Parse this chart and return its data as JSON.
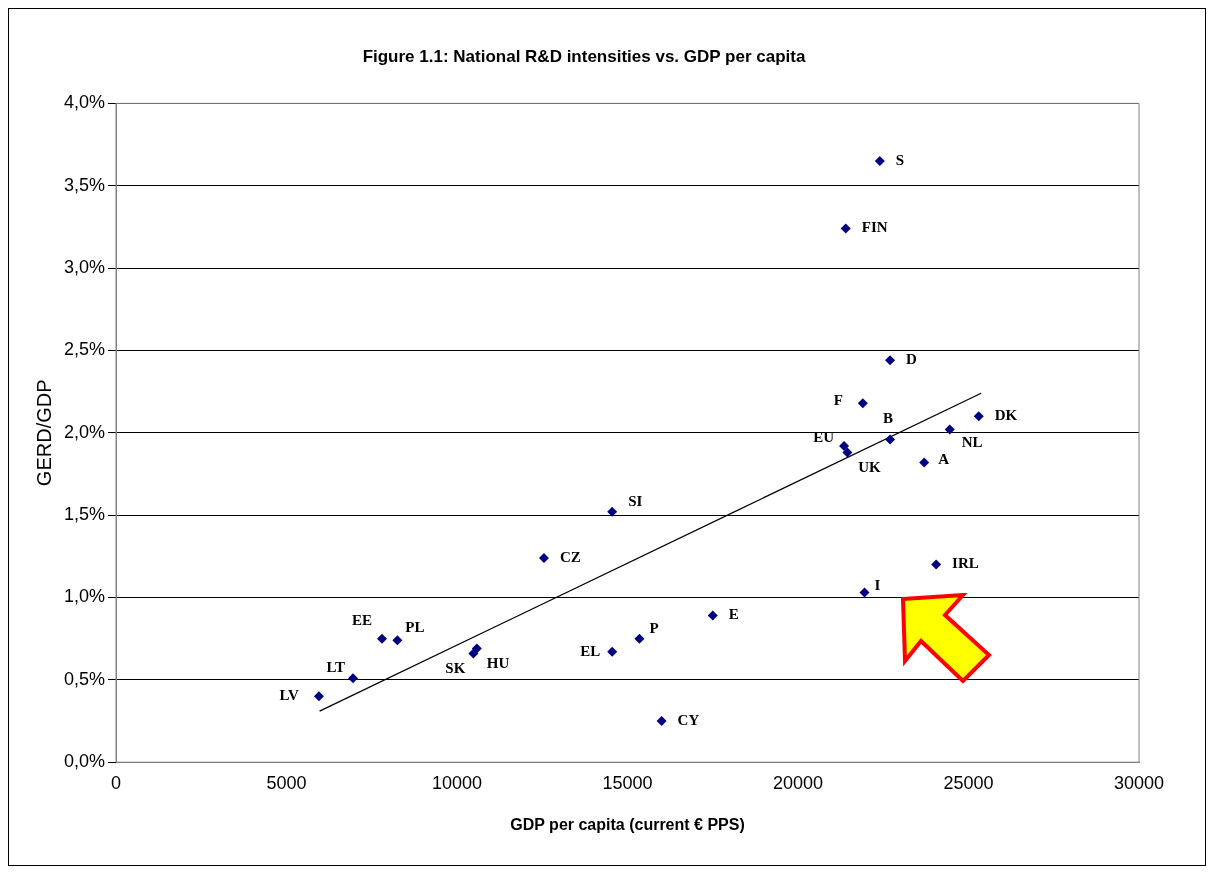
{
  "chart_data": {
    "type": "scatter",
    "title": "Figure 1.1: National R&D intensities vs. GDP per capita",
    "xlabel": "GDP per capita (current € PPS)",
    "ylabel": "GERD/GDP",
    "series": [
      {
        "color": "#000080",
        "marker": "diamond",
        "x": [
          22400,
          21400,
          22700,
          21900,
          22700,
          21350,
          21450,
          23700,
          24450,
          25300,
          14550,
          12550,
          24050,
          21950,
          17500,
          15350,
          14550,
          16000,
          7800,
          8250,
          10480,
          10580,
          6950,
          5950
        ],
        "values": [
          3.65,
          3.24,
          2.44,
          2.18,
          1.96,
          1.92,
          1.88,
          1.82,
          2.02,
          2.1,
          1.52,
          1.24,
          1.2,
          1.03,
          0.89,
          0.75,
          0.67,
          0.25,
          0.75,
          0.74,
          0.66,
          0.69,
          0.51,
          0.4
        ]
      },
      {
        "type": "line",
        "color": "#000000",
        "marker": "none",
        "x": [
          5970,
          25370
        ],
        "values": [
          0.31,
          2.24
        ]
      }
    ],
    "annotations": [
      {
        "text": "S",
        "x": 22400,
        "y": 3.65
      },
      {
        "text": "FIN",
        "x": 21400,
        "y": 3.24
      },
      {
        "text": "D",
        "x": 22700,
        "y": 2.44
      },
      {
        "text": "F",
        "x": 21900,
        "y": 2.18
      },
      {
        "text": "B",
        "x": 22700,
        "y": 1.96
      },
      {
        "text": "EU",
        "x": 21350,
        "y": 1.92
      },
      {
        "text": "UK",
        "x": 21450,
        "y": 1.88
      },
      {
        "text": "A",
        "x": 23700,
        "y": 1.82
      },
      {
        "text": "NL",
        "x": 24450,
        "y": 2.02
      },
      {
        "text": "DK",
        "x": 25300,
        "y": 2.1
      },
      {
        "text": "SI",
        "x": 14550,
        "y": 1.52
      },
      {
        "text": "CZ",
        "x": 12550,
        "y": 1.24
      },
      {
        "text": "IRL",
        "x": 24050,
        "y": 1.2
      },
      {
        "text": "I",
        "x": 21950,
        "y": 1.03
      },
      {
        "text": "E",
        "x": 17500,
        "y": 0.89
      },
      {
        "text": "P",
        "x": 15350,
        "y": 0.75
      },
      {
        "text": "EL",
        "x": 14550,
        "y": 0.67
      },
      {
        "text": "CY",
        "x": 16000,
        "y": 0.25
      },
      {
        "text": "EE",
        "x": 7800,
        "y": 0.75
      },
      {
        "text": "PL",
        "x": 8250,
        "y": 0.74
      },
      {
        "text": "SK",
        "x": 10480,
        "y": 0.66
      },
      {
        "text": "HU",
        "x": 10580,
        "y": 0.69
      },
      {
        "text": "LT",
        "x": 6950,
        "y": 0.51
      },
      {
        "text": "LV",
        "x": 5950,
        "y": 0.4
      }
    ],
    "xlim": [
      0,
      30000
    ],
    "xticks": [
      0,
      5000,
      10000,
      15000,
      20000,
      25000,
      30000
    ],
    "ylim": [
      0,
      4
    ],
    "yticks": [
      {
        "value": 0,
        "label": "0,0%"
      },
      {
        "value": 0.5,
        "label": "0,5%"
      },
      {
        "value": 1,
        "label": "1,0%"
      },
      {
        "value": 1.5,
        "label": "1,5%"
      },
      {
        "value": 2,
        "label": "2,0%"
      },
      {
        "value": 2.5,
        "label": "2,5%"
      },
      {
        "value": 3,
        "label": "3,0%"
      },
      {
        "value": 3.5,
        "label": "3,5%"
      },
      {
        "value": 4,
        "label": "4,0%"
      }
    ],
    "grid": "y",
    "legend": false
  }
}
